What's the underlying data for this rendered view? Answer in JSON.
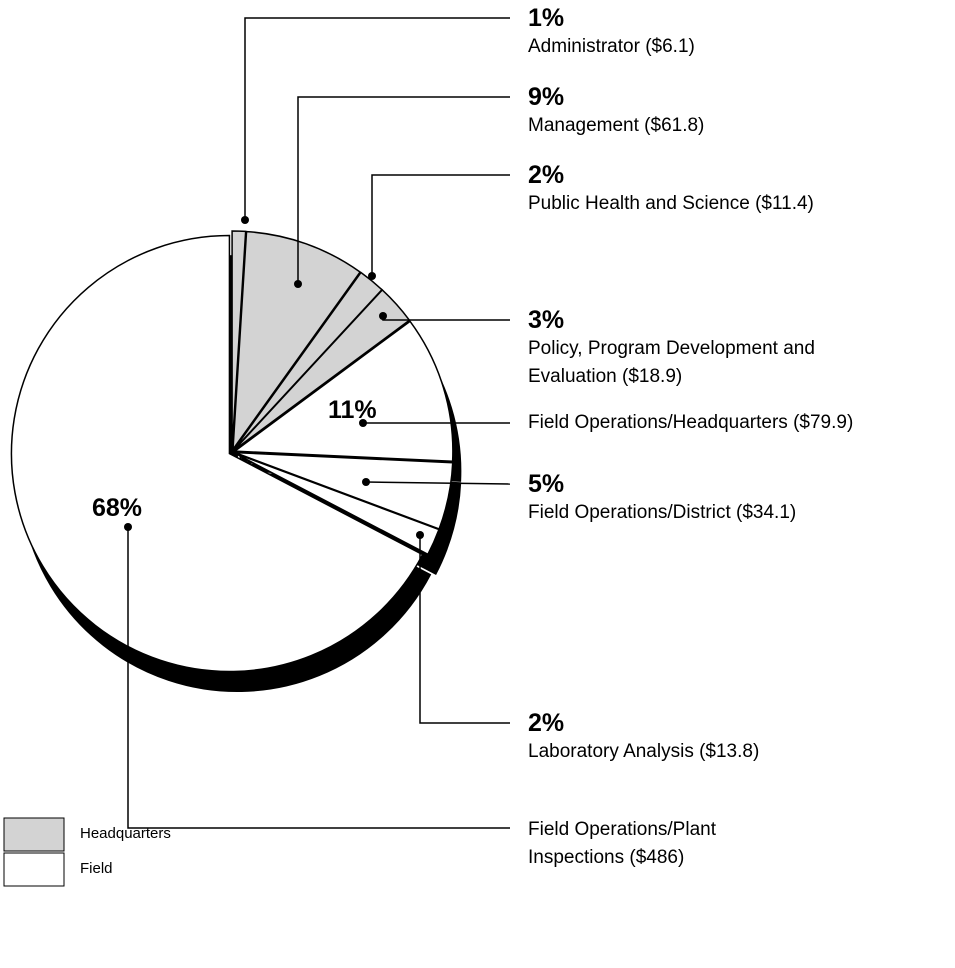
{
  "chart_data": {
    "type": "pie",
    "categories": [
      "Administrator ($6.1)",
      "Management ($61.8)",
      "Public Health and Science ($11.4)",
      "Policy, Program Development and Evaluation ($18.9)",
      "Field Operations/Headquarters ($79.9)",
      "Field Operations/District ($34.1)",
      "Laboratory Analysis ($13.8)",
      "Field Operations/Plant Inspections ($486)"
    ],
    "values": [
      1,
      9,
      2,
      3,
      11,
      5,
      2,
      68
    ],
    "value_labels": [
      "1%",
      "9%",
      "2%",
      "3%",
      "11%",
      "5%",
      "2%",
      "68%"
    ],
    "colors": [
      "#d3d3d3",
      "#d3d3d3",
      "#d3d3d3",
      "#d3d3d3",
      "#ffffff",
      "#ffffff",
      "#ffffff",
      "#ffffff"
    ],
    "legend": [
      {
        "name": "Headquarters",
        "color": "#d3d3d3"
      },
      {
        "name": "Field",
        "color": "#ffffff"
      }
    ]
  }
}
